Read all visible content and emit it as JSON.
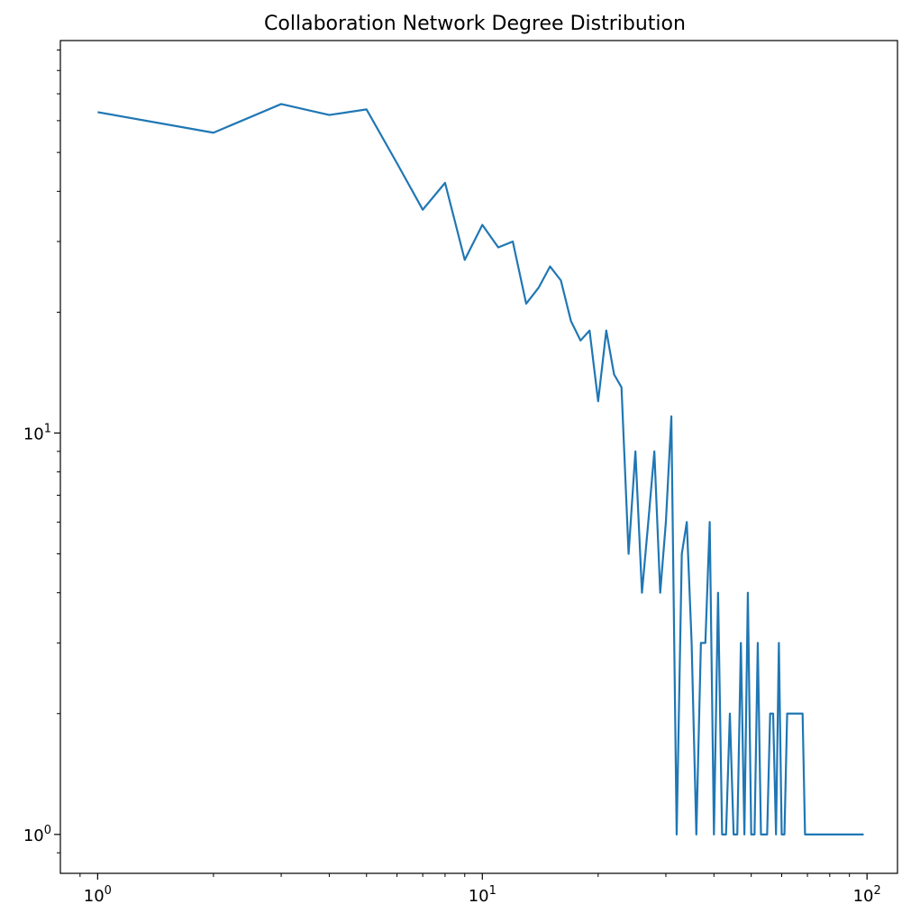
{
  "chart_data": {
    "type": "line",
    "title": "Collaboration Network Degree Distribution",
    "xlabel": "",
    "ylabel": "",
    "xscale": "log",
    "yscale": "log",
    "xlim": [
      0.8,
      120
    ],
    "ylim": [
      0.8,
      95
    ],
    "grid": false,
    "legend": "none",
    "line_color": "#1f77b4",
    "x_major_ticks": [
      {
        "value": 1,
        "base": "10",
        "exp": "0"
      },
      {
        "value": 10,
        "base": "10",
        "exp": "1"
      },
      {
        "value": 100,
        "base": "10",
        "exp": "2"
      }
    ],
    "y_major_ticks": [
      {
        "value": 1,
        "base": "10",
        "exp": "0"
      },
      {
        "value": 10,
        "base": "10",
        "exp": "1"
      }
    ],
    "series": [
      {
        "x": [
          1,
          2,
          3,
          4,
          5,
          6,
          7,
          8,
          9,
          10,
          11,
          12,
          13,
          14,
          15,
          16,
          17,
          18,
          19,
          20,
          21,
          22,
          23,
          24,
          25,
          26,
          27,
          28,
          29,
          30,
          31,
          32,
          33,
          34,
          35,
          36,
          37,
          38,
          39,
          40,
          41,
          42,
          43,
          44,
          45,
          46,
          47,
          48,
          49,
          50,
          51,
          52,
          53,
          54,
          55,
          56,
          57,
          58,
          59,
          60,
          61,
          62,
          63,
          64,
          65,
          66,
          67,
          68,
          69,
          70,
          80,
          90,
          98
        ],
        "y": [
          63,
          56,
          66,
          62,
          64,
          47,
          36,
          42,
          27,
          33,
          29,
          30,
          21,
          23,
          26,
          24,
          19,
          17,
          18,
          12,
          18,
          14,
          13,
          5,
          9,
          4,
          6,
          9,
          4,
          6,
          11,
          1,
          5,
          6,
          3,
          1,
          3,
          3,
          6,
          1,
          4,
          1,
          1,
          2,
          1,
          1,
          3,
          1,
          4,
          1,
          1,
          3,
          1,
          1,
          1,
          2,
          2,
          1,
          3,
          1,
          1,
          2,
          2,
          2,
          2,
          2,
          2,
          2,
          1,
          1,
          1,
          1,
          1
        ]
      }
    ]
  }
}
